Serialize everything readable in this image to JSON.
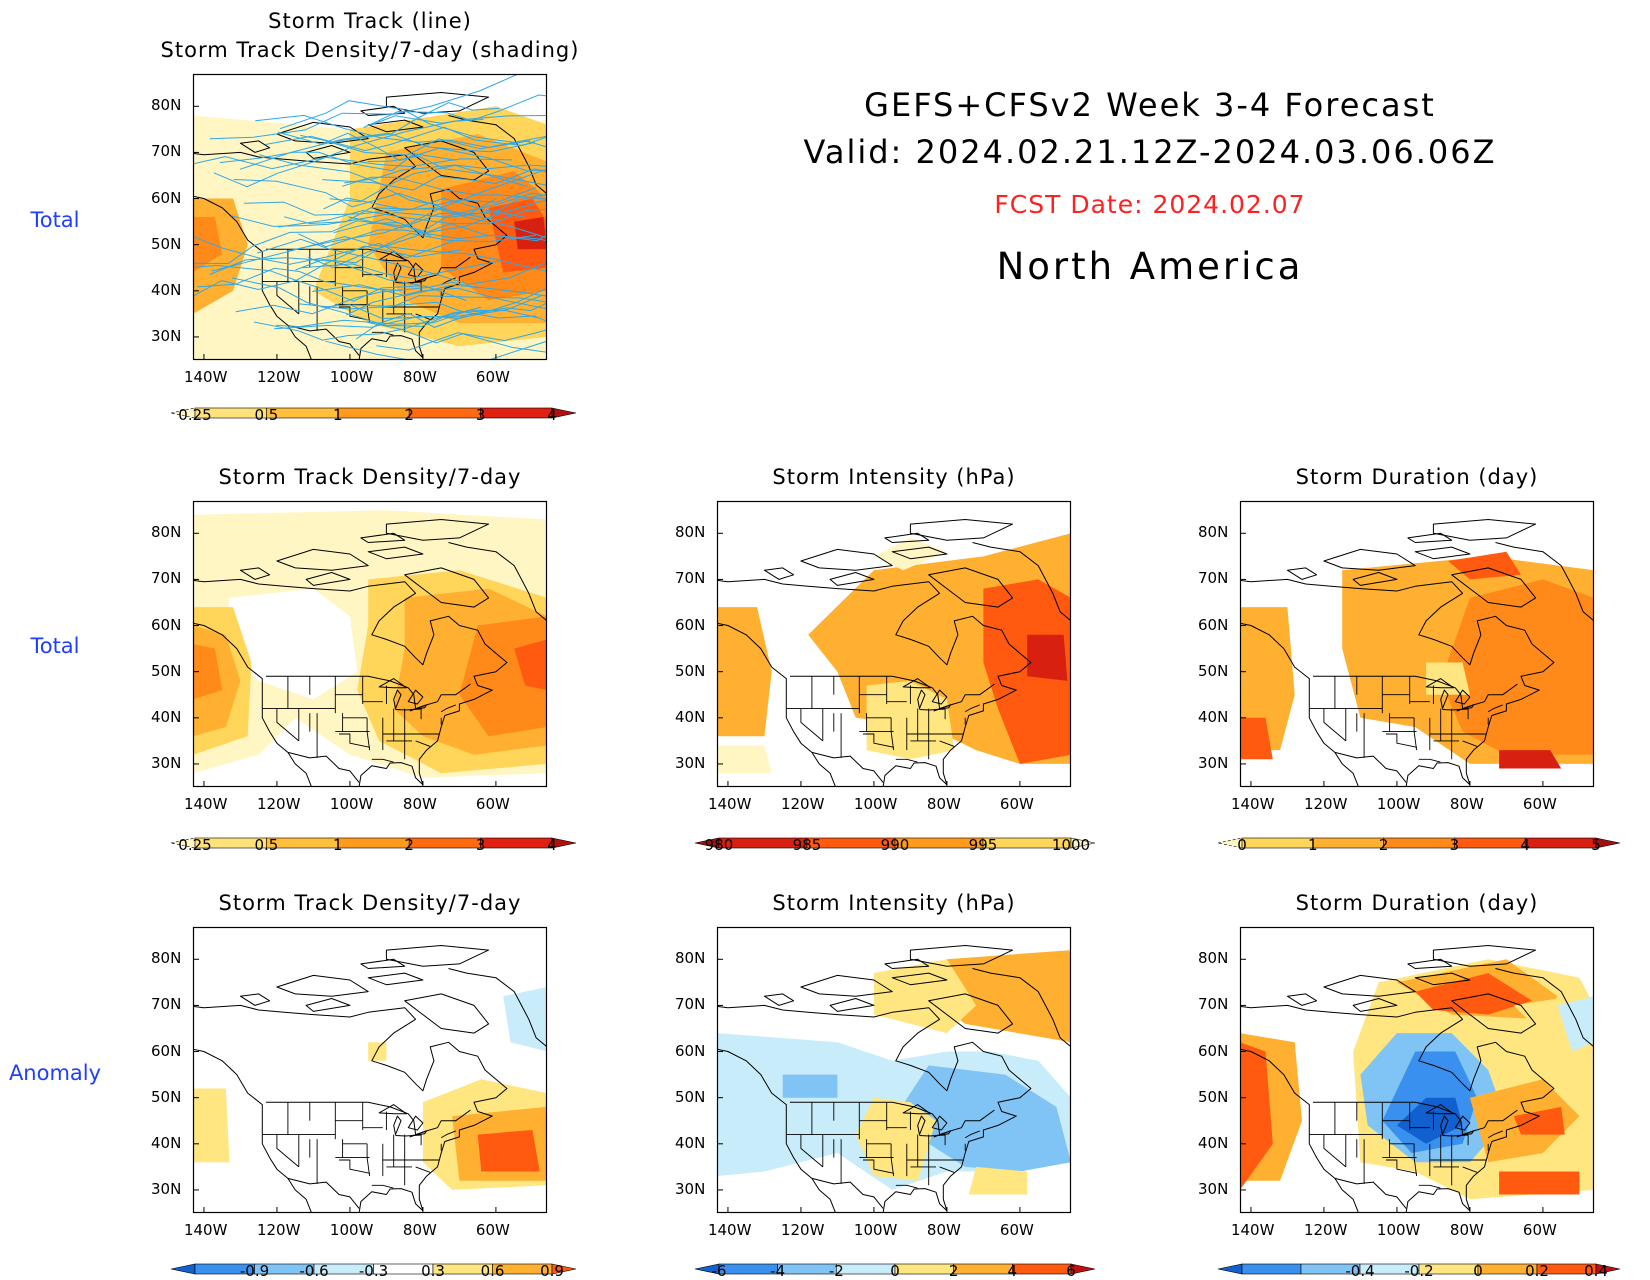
{
  "header": {
    "line1": "GEFS+CFSv2 Week 3-4 Forecast",
    "line2": "Valid: 2024.02.21.12Z-2024.03.06.06Z",
    "fcst": "FCST Date: 2024.02.07",
    "region": "North America"
  },
  "row_labels": {
    "row1": "Total",
    "row2": "Total",
    "row3": "Anomaly"
  },
  "colors": {
    "row_label": "#1f3fff",
    "fcst_date": "#ff2020",
    "track_line": "#2fa8e8"
  },
  "axes": {
    "lat_ticks": [
      "80N",
      "70N",
      "60N",
      "50N",
      "40N",
      "30N"
    ],
    "lon_ticks": [
      "140W",
      "120W",
      "100W",
      "80W",
      "60W"
    ]
  },
  "chart_data": [
    {
      "id": "p1",
      "type": "heatmap",
      "title": "Storm Track (line)",
      "subtitle": "Storm Track Density/7-day (shading)",
      "colorbar": {
        "levels": [
          "0.25",
          "0.5",
          "1",
          "2",
          "3",
          "4"
        ],
        "colors": [
          "#fff6c4",
          "#ffe27a",
          "#ffbf3a",
          "#ff9a1a",
          "#ff6a10",
          "#e02010",
          "#b01010"
        ]
      },
      "overlay": "storm track lines",
      "density_regions": [
        {
          "area": "Gulf of Alaska / NE Pacific",
          "level": 2
        },
        {
          "area": "Hudson Bay / Quebec",
          "level": 1
        },
        {
          "area": "Labrador Sea / Newfoundland",
          "level": 4
        },
        {
          "area": "US East Coast",
          "level": 2
        },
        {
          "area": "Central US",
          "level": 0.5
        }
      ]
    },
    {
      "id": "p2",
      "type": "heatmap",
      "title": "Storm Track Density/7-day",
      "colorbar": {
        "levels": [
          "0.25",
          "0.5",
          "1",
          "2",
          "3",
          "4"
        ],
        "colors": [
          "#fff6c4",
          "#ffe27a",
          "#ffbf3a",
          "#ff9a1a",
          "#ff6a10",
          "#e02010",
          "#b01010"
        ]
      },
      "density_regions": [
        {
          "area": "Gulf of Alaska",
          "level": 2
        },
        {
          "area": "Hudson Bay / Quebec",
          "level": 1
        },
        {
          "area": "Labrador Sea / Newfoundland",
          "level": 3
        },
        {
          "area": "Great Lakes / East US",
          "level": 1
        },
        {
          "area": "Arctic",
          "level": 0.25
        }
      ]
    },
    {
      "id": "p3",
      "type": "heatmap",
      "title": "Storm Intensity (hPa)",
      "colorbar": {
        "levels": [
          "980",
          "985",
          "990",
          "995",
          "1000"
        ],
        "colors": [
          "#a01010",
          "#d82010",
          "#ff5a10",
          "#ff9a1a",
          "#ffd55a",
          "#fff6c4"
        ]
      },
      "regions": [
        {
          "area": "Gulf of Alaska",
          "value": 990
        },
        {
          "area": "Canada",
          "value": 990
        },
        {
          "area": "Labrador Sea",
          "value": 985
        },
        {
          "area": "Central US",
          "value": 1000
        }
      ]
    },
    {
      "id": "p4",
      "type": "heatmap",
      "title": "Storm Duration (day)",
      "colorbar": {
        "levels": [
          "0",
          "1",
          "2",
          "3",
          "4",
          "5"
        ],
        "colors": [
          "#fff6c4",
          "#ffd55a",
          "#ffb030",
          "#ff8a1a",
          "#ff5a10",
          "#d82010",
          "#a01010"
        ]
      },
      "regions": [
        {
          "area": "NE Pacific",
          "value": 3
        },
        {
          "area": "Canada",
          "value": 3
        },
        {
          "area": "Western Atlantic",
          "value": 3
        },
        {
          "area": "Off US East Coast",
          "value": 4
        }
      ]
    },
    {
      "id": "p5",
      "type": "heatmap",
      "title": "Storm Track Density/7-day",
      "colorbar": {
        "levels": [
          "-0.9",
          "-0.6",
          "-0.3",
          "0.3",
          "0.6",
          "0.9"
        ],
        "colors": [
          "#1060d0",
          "#3a90ee",
          "#80c4f6",
          "#c8ecfa",
          "#ffffff",
          "#ffe680",
          "#ffb030",
          "#ff5a10"
        ]
      },
      "regions": [
        {
          "area": "Off US East Coast",
          "value": 0.9
        },
        {
          "area": "US Mid-Atlantic",
          "value": 0.6
        },
        {
          "area": "Labrador coast",
          "value": -0.3
        }
      ]
    },
    {
      "id": "p6",
      "type": "heatmap",
      "title": "Storm Intensity (hPa)",
      "colorbar": {
        "levels": [
          "-6",
          "-4",
          "-2",
          "0",
          "2",
          "4",
          "6"
        ],
        "colors": [
          "#1060d0",
          "#3a90ee",
          "#80c4f6",
          "#c8ecfa",
          "#ffe680",
          "#ffb030",
          "#ff5a10",
          "#c01010"
        ]
      },
      "regions": [
        {
          "area": "Canadian Arctic",
          "value": 4
        },
        {
          "area": "Western Canada / NE Pacific",
          "value": -2
        },
        {
          "area": "Eastern US",
          "value": -4
        },
        {
          "area": "Central US",
          "value": 2
        }
      ]
    },
    {
      "id": "p7",
      "type": "heatmap",
      "title": "Storm Duration (day)",
      "colorbar": {
        "levels": [
          "-0.4",
          "-0.2",
          "0",
          "0.2",
          "0.4"
        ],
        "colors": [
          "#1060d0",
          "#3a90ee",
          "#80c4f6",
          "#c8ecfa",
          "#ffe680",
          "#ffb030",
          "#ff5a10",
          "#c01010"
        ]
      },
      "regions": [
        {
          "area": "Canadian Arctic",
          "value": 0.4
        },
        {
          "area": "NE Pacific",
          "value": 0.4
        },
        {
          "area": "Great Lakes / Central US",
          "value": -0.4
        },
        {
          "area": "Off US East Coast",
          "value": 0.4
        }
      ]
    }
  ]
}
